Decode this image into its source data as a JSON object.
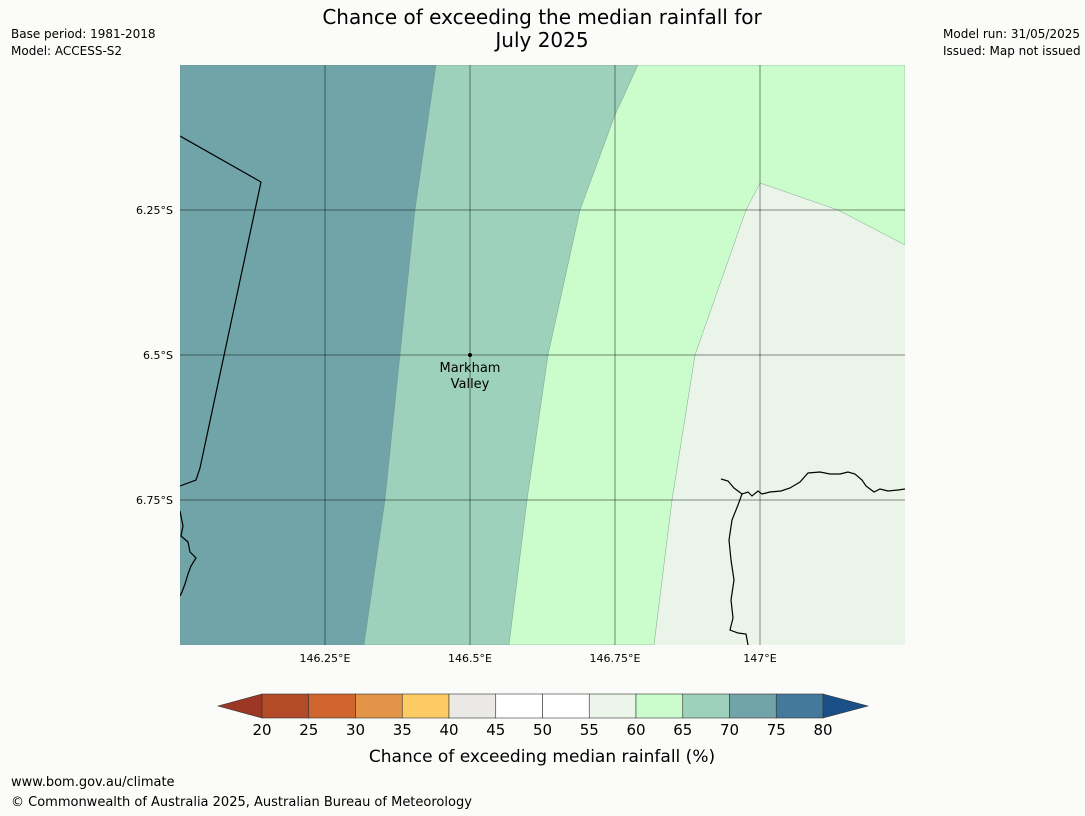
{
  "header": {
    "title_line1": "Chance of exceeding the median rainfall for",
    "title_line2": "July 2025",
    "base_period": "Base period: 1981-2018",
    "model": "Model: ACCESS-S2",
    "model_run": "Model run: 31/05/2025",
    "issued": "Issued: Map not issued"
  },
  "map": {
    "lat_ticks": [
      "6.25°S",
      "6.5°S",
      "6.75°S"
    ],
    "lon_ticks": [
      "146.25°E",
      "146.5°E",
      "146.75°E",
      "147°E"
    ],
    "place": {
      "name_line1": "Markham",
      "name_line2": "Valley",
      "lon": 146.5,
      "lat": -6.5
    },
    "zone_colors": {
      "70-75": "#70a4a8",
      "65-70": "#9ed1bb",
      "60-65": "#cbfccb",
      "55-60": "#eaf4e9"
    }
  },
  "colorbar": {
    "label": "Chance of exceeding median rainfall (%)",
    "ticks": [
      "20",
      "25",
      "30",
      "35",
      "40",
      "45",
      "50",
      "55",
      "60",
      "65",
      "70",
      "75",
      "80"
    ],
    "under_color": "#9c3726",
    "over_color": "#1b4f88",
    "colors": [
      "#b34a28",
      "#d0652e",
      "#e39448",
      "#fdca63",
      "#ebe9e5",
      "#ffffff",
      "#ffffff",
      "#eaf4e9",
      "#cbfccb",
      "#9ed1bb",
      "#70a4a8",
      "#43799b"
    ]
  },
  "footer": {
    "url": "www.bom.gov.au/climate",
    "copyright": "© Commonwealth of Australia 2025, Australian Bureau of Meteorology"
  }
}
